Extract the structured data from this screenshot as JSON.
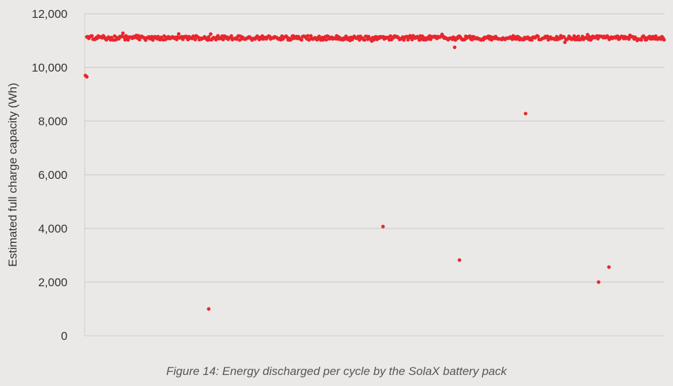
{
  "caption": "Figure 14: Energy discharged per cycle by the SolaX battery pack",
  "colors": {
    "point": "#e8262e",
    "grid": "#c8c6c4",
    "axis": "#cfcdcb",
    "background": "#ebe9e7"
  },
  "chart_data": {
    "type": "scatter",
    "title": "",
    "xlabel": "",
    "ylabel": "Estimated full charge capacity (Wh)",
    "ylim": [
      0,
      12000
    ],
    "yticks": [
      0,
      2000,
      4000,
      6000,
      8000,
      10000,
      12000
    ],
    "ytick_labels": [
      "0",
      "2,000",
      "4,000",
      "6,000",
      "8,000",
      "10,000",
      "12,000"
    ],
    "xlim": [
      0,
      842
    ],
    "grid": true,
    "x_axis_labels_shown": false,
    "series": [
      {
        "cluster": {
          "x_start": 3,
          "x_end": 841,
          "count": 560,
          "y_mean": 11100,
          "y_spread": 160
        },
        "points": [
          {
            "x": 1,
            "y": 9700
          },
          {
            "x": 3,
            "y": 9650
          },
          {
            "x": 180,
            "y": 1000
          },
          {
            "x": 433,
            "y": 4070
          },
          {
            "x": 537,
            "y": 10750
          },
          {
            "x": 544,
            "y": 2820
          },
          {
            "x": 640,
            "y": 8280
          },
          {
            "x": 746,
            "y": 2000
          },
          {
            "x": 761,
            "y": 2560
          }
        ]
      }
    ]
  }
}
